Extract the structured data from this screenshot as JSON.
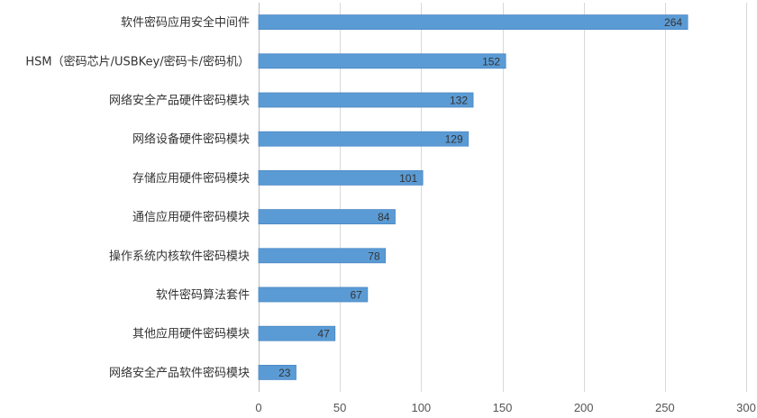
{
  "chart_data": {
    "type": "bar",
    "orientation": "horizontal",
    "categories": [
      "软件密码应用安全中间件",
      "HSM（密码芯片/USBKey/密码卡/密码机）",
      "网络安全产品硬件密码模块",
      "网络设备硬件密码模块",
      "存储应用硬件密码模块",
      "通信应用硬件密码模块",
      "操作系统内核软件密码模块",
      "软件密码算法套件",
      "其他应用硬件密码模块",
      "网络安全产品软件密码模块"
    ],
    "values": [
      264,
      152,
      132,
      129,
      101,
      84,
      78,
      67,
      47,
      23
    ],
    "xlim": [
      0,
      300
    ],
    "xticks": [
      0,
      50,
      100,
      150,
      200,
      250,
      300
    ],
    "title": "",
    "xlabel": "",
    "ylabel": "",
    "grid": "vertical",
    "legend": "none",
    "bar_color": "#5b9bd5",
    "bar_border_color": "#4a87c4",
    "data_labels": "inside-end"
  }
}
